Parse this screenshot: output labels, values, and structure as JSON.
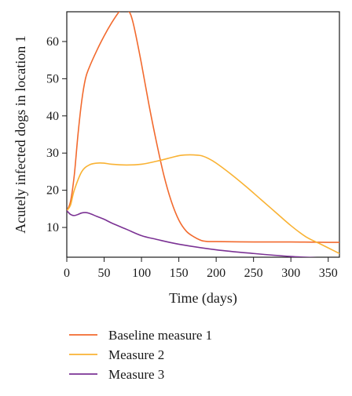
{
  "chart_data": {
    "type": "line",
    "title": "",
    "xlabel": "Time (days)",
    "ylabel": "Acutely infected dogs in location 1",
    "xlim": [
      0,
      365
    ],
    "ylim": [
      2,
      68
    ],
    "xticks": [
      "0",
      "50",
      "100",
      "150",
      "200",
      "250",
      "300",
      "350"
    ],
    "yticks": [
      "10",
      "20",
      "30",
      "40",
      "50",
      "60"
    ],
    "grid": false,
    "legend_placement": "bottom",
    "series": [
      {
        "name": "Baseline measure 1",
        "color": "#f26a2e",
        "x": [
          0,
          5,
          10,
          15,
          20,
          25,
          30,
          40,
          50,
          60,
          70,
          75,
          80,
          85,
          90,
          100,
          110,
          120,
          130,
          140,
          150,
          160,
          170,
          180,
          185,
          190,
          200,
          250,
          300,
          350,
          365
        ],
        "y": [
          14.5,
          17,
          24,
          35,
          44,
          50,
          53,
          57.5,
          61.5,
          65,
          68,
          69,
          68.5,
          67.5,
          64,
          54,
          43,
          33,
          24,
          17,
          12,
          9,
          7.5,
          6.5,
          6.3,
          6.2,
          6.2,
          6.1,
          6.1,
          6.0,
          6.0
        ]
      },
      {
        "name": "Measure 2",
        "color": "#f9b233",
        "x": [
          0,
          5,
          10,
          20,
          30,
          40,
          50,
          60,
          80,
          100,
          120,
          140,
          150,
          160,
          170,
          180,
          190,
          200,
          220,
          240,
          260,
          280,
          300,
          320,
          340,
          350,
          365
        ],
        "y": [
          14.5,
          16,
          20,
          25,
          26.8,
          27.3,
          27.3,
          27,
          26.8,
          27,
          27.8,
          28.8,
          29.3,
          29.5,
          29.5,
          29.3,
          28.5,
          27.3,
          24.3,
          21,
          17.5,
          14,
          10.5,
          7.5,
          5.5,
          4.5,
          3
        ]
      },
      {
        "name": "Measure 3",
        "color": "#7b3294",
        "x": [
          0,
          5,
          10,
          15,
          20,
          25,
          30,
          40,
          50,
          60,
          80,
          100,
          120,
          150,
          200,
          250,
          300,
          350,
          365
        ],
        "y": [
          14.5,
          13.5,
          13.2,
          13.5,
          13.9,
          14,
          13.8,
          13,
          12.2,
          11.2,
          9.5,
          7.8,
          6.8,
          5.5,
          4,
          3,
          2.2,
          1.7,
          1.5
        ]
      }
    ]
  }
}
